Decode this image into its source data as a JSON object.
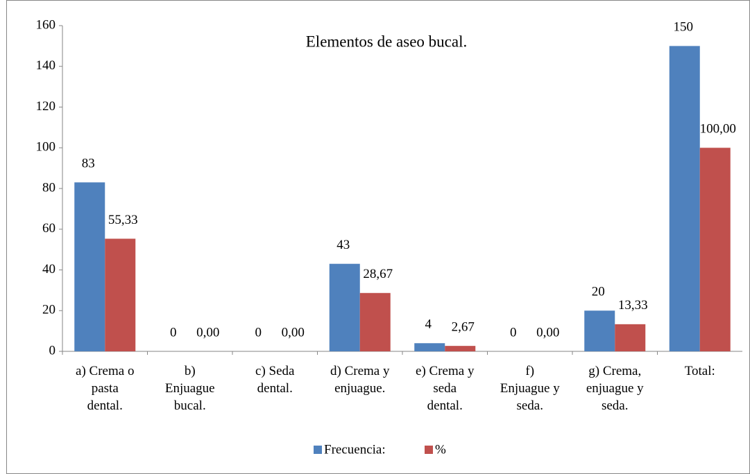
{
  "chart_data": {
    "type": "bar",
    "title": "Elementos de aseo bucal.",
    "categories": [
      "a) Crema o pasta dental.",
      "b) Enjuague bucal.",
      "c) Seda dental.",
      "d) Crema y enjuague.",
      "e) Crema y seda dental.",
      "f) Enjuague y seda.",
      "g) Crema, enjuague y seda.",
      "Total:"
    ],
    "series": [
      {
        "name": "Frecuencia:",
        "color": "#4f81bd",
        "values": [
          83,
          0,
          0,
          43,
          4,
          0,
          20,
          150
        ]
      },
      {
        "name": "%",
        "color": "#c0504d",
        "values": [
          55.33,
          0,
          0,
          28.67,
          2.67,
          0,
          13.33,
          100
        ],
        "value_labels": [
          "55,33",
          "0,00",
          "0,00",
          "28,67",
          "2,67",
          "0,00",
          "13,33",
          "100,00"
        ]
      }
    ],
    "ylim": [
      0,
      160
    ],
    "yticks": [
      0,
      20,
      40,
      60,
      80,
      100,
      120,
      140,
      160
    ],
    "legend": "bottom"
  }
}
